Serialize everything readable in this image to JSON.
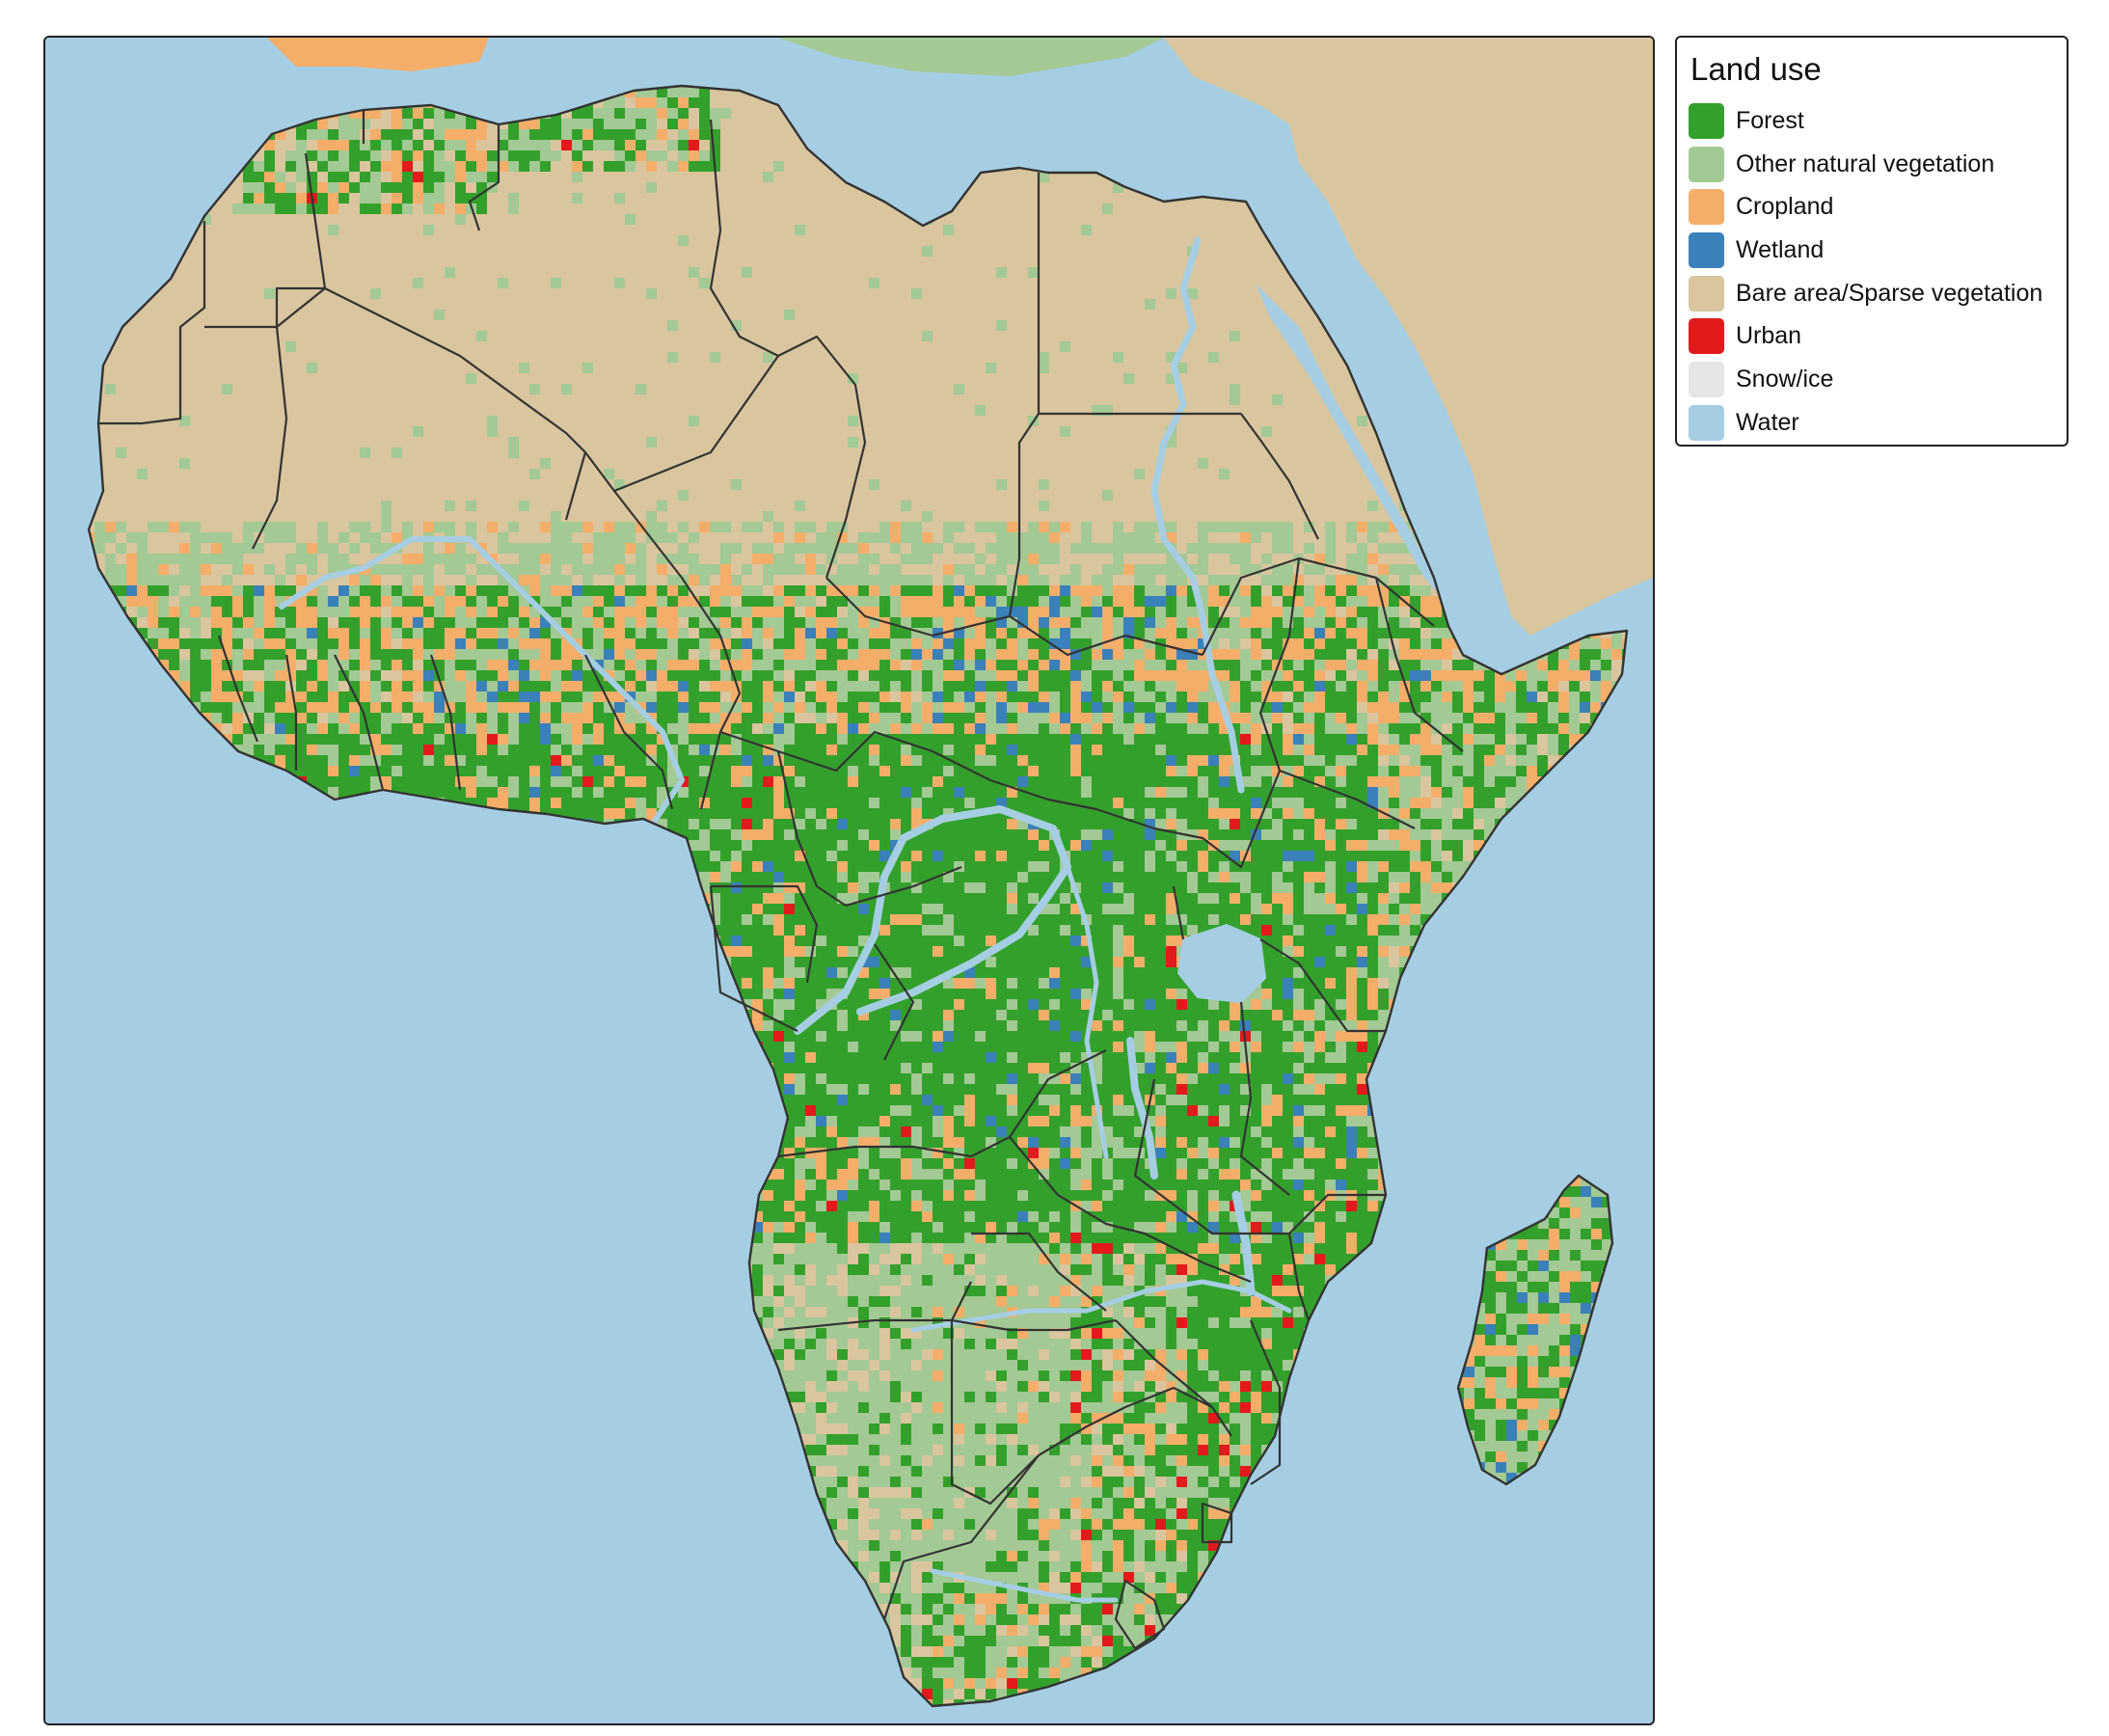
{
  "legend": {
    "title": "Land use",
    "items": [
      {
        "label": "Forest",
        "color": "#33a02c"
      },
      {
        "label": "Other natural vegetation",
        "color": "#a3c994"
      },
      {
        "label": "Cropland",
        "color": "#f5ae6a"
      },
      {
        "label": "Wetland",
        "color": "#3a80b9"
      },
      {
        "label": "Bare area/Sparse vegetation",
        "color": "#d9c59e"
      },
      {
        "label": "Urban",
        "color": "#e31a1c"
      },
      {
        "label": "Snow/ice",
        "color": "#e6e6e6"
      },
      {
        "label": "Water",
        "color": "#a6cee3"
      }
    ]
  },
  "map": {
    "ocean_color": "#a6cee3",
    "border_color": "#333333",
    "river_color": "#a6cee3"
  }
}
